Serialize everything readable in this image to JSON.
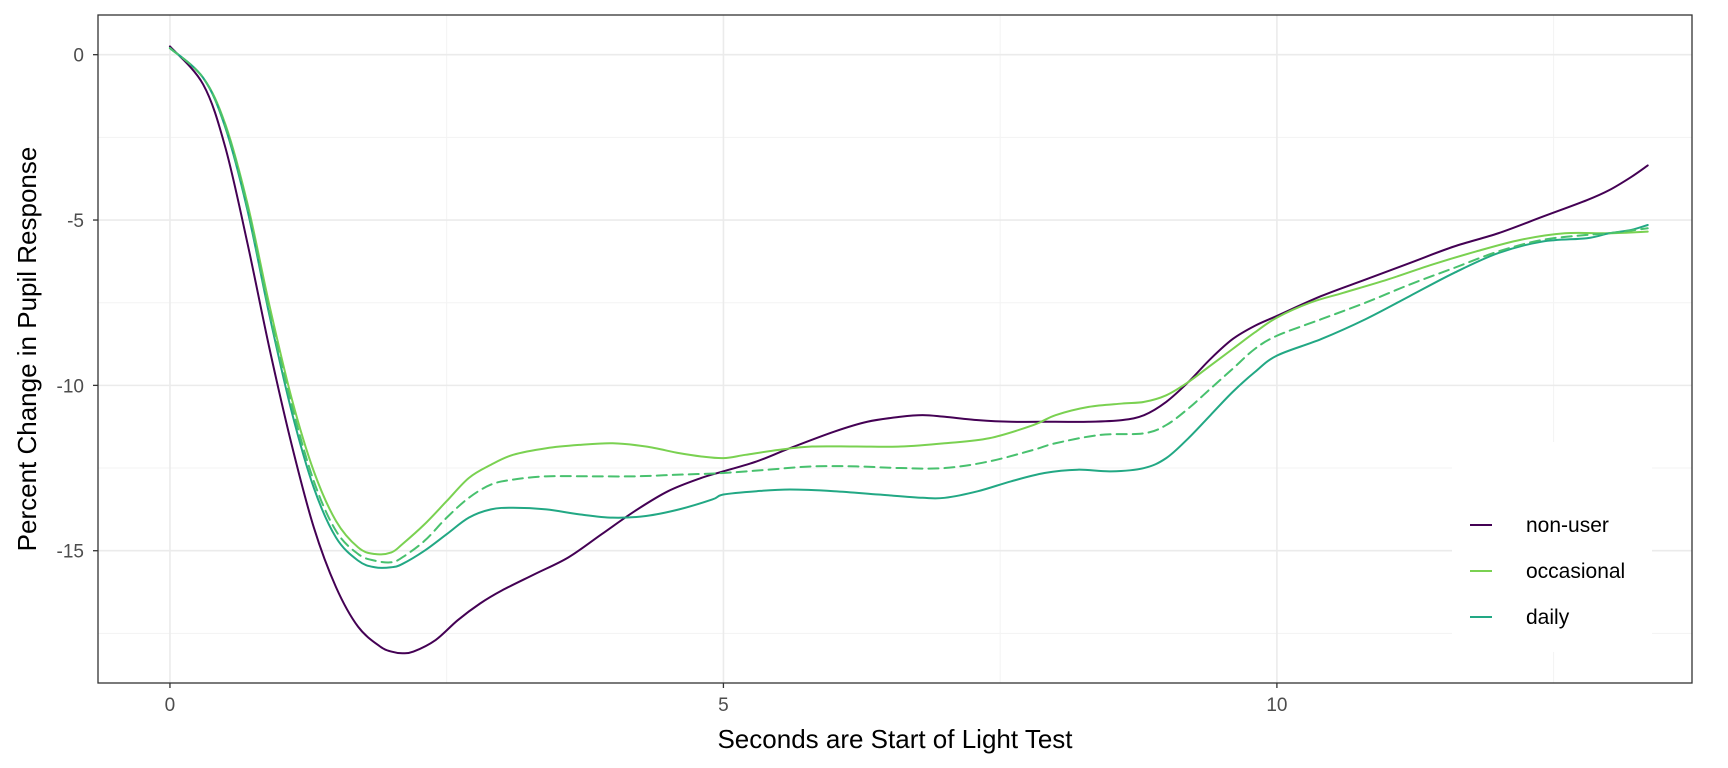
{
  "chart_data": {
    "type": "line",
    "title": "",
    "xlabel": "Seconds are Start of Light Test",
    "ylabel": "Percent Change in Pupil Response",
    "xlim": [
      -0.65,
      13.75
    ],
    "ylim": [
      -19.0,
      1.2
    ],
    "x_ticks": [
      0,
      5,
      10
    ],
    "x_tick_labels": [
      "0",
      "5",
      "10"
    ],
    "y_ticks": [
      0,
      -5,
      -10,
      -15
    ],
    "y_tick_labels": [
      "0",
      "-5",
      "-10",
      "-15"
    ],
    "x_minor_ticks": [
      2.5,
      7.5,
      12.5
    ],
    "y_minor_ticks": [
      -2.5,
      -7.5,
      -12.5,
      -17.5
    ],
    "grid": true,
    "legend_position": "bottom-right",
    "series": [
      {
        "name": "non-user",
        "color": "#440154",
        "dash": "solid",
        "x": [
          0,
          0.3,
          0.5,
          0.7,
          0.9,
          1.1,
          1.3,
          1.5,
          1.7,
          1.9,
          2.0,
          2.1,
          2.2,
          2.4,
          2.6,
          2.8,
          3.0,
          3.3,
          3.6,
          3.9,
          4.2,
          4.5,
          4.8,
          5.0,
          5.3,
          5.6,
          6.0,
          6.3,
          6.6,
          6.8,
          7.0,
          7.3,
          7.6,
          8.0,
          8.3,
          8.6,
          8.8,
          9.0,
          9.2,
          9.4,
          9.6,
          9.8,
          10.0,
          10.4,
          10.8,
          11.2,
          11.6,
          12.0,
          12.4,
          12.8,
          13.0,
          13.2,
          13.35
        ],
        "y": [
          0.25,
          -0.9,
          -2.8,
          -5.7,
          -8.9,
          -11.8,
          -14.3,
          -16.1,
          -17.3,
          -17.9,
          -18.05,
          -18.1,
          -18.05,
          -17.7,
          -17.1,
          -16.6,
          -16.2,
          -15.7,
          -15.2,
          -14.5,
          -13.8,
          -13.2,
          -12.8,
          -12.6,
          -12.3,
          -11.9,
          -11.4,
          -11.1,
          -10.95,
          -10.9,
          -10.95,
          -11.05,
          -11.1,
          -11.1,
          -11.1,
          -11.05,
          -10.9,
          -10.5,
          -9.9,
          -9.2,
          -8.6,
          -8.2,
          -7.9,
          -7.3,
          -6.8,
          -6.3,
          -5.8,
          -5.4,
          -4.9,
          -4.4,
          -4.1,
          -3.7,
          -3.35
        ]
      },
      {
        "name": "occasional",
        "color": "#7AD151",
        "dash": "solid",
        "x": [
          0,
          0.3,
          0.5,
          0.7,
          0.9,
          1.1,
          1.3,
          1.5,
          1.7,
          1.85,
          2.0,
          2.1,
          2.3,
          2.5,
          2.7,
          2.9,
          3.1,
          3.4,
          3.7,
          4.0,
          4.3,
          4.6,
          4.8,
          5.0,
          5.2,
          5.5,
          5.8,
          6.2,
          6.6,
          7.0,
          7.4,
          7.8,
          8.0,
          8.3,
          8.6,
          8.8,
          9.0,
          9.2,
          9.4,
          9.6,
          9.8,
          10.0,
          10.3,
          10.6,
          11.0,
          11.4,
          11.8,
          12.2,
          12.6,
          13.0,
          13.35
        ],
        "y": [
          0.2,
          -0.7,
          -2.1,
          -4.5,
          -7.6,
          -10.4,
          -12.6,
          -14.1,
          -14.9,
          -15.1,
          -15.05,
          -14.8,
          -14.2,
          -13.5,
          -12.8,
          -12.4,
          -12.1,
          -11.9,
          -11.8,
          -11.75,
          -11.85,
          -12.05,
          -12.15,
          -12.2,
          -12.1,
          -11.95,
          -11.85,
          -11.85,
          -11.85,
          -11.75,
          -11.6,
          -11.2,
          -10.9,
          -10.65,
          -10.55,
          -10.5,
          -10.3,
          -9.9,
          -9.4,
          -8.9,
          -8.4,
          -7.95,
          -7.5,
          -7.2,
          -6.8,
          -6.35,
          -5.95,
          -5.6,
          -5.4,
          -5.4,
          -5.35
        ]
      },
      {
        "name": "daily",
        "color": "#22A884",
        "dash": "solid",
        "x": [
          0,
          0.3,
          0.5,
          0.7,
          0.9,
          1.1,
          1.3,
          1.5,
          1.7,
          1.85,
          2.0,
          2.1,
          2.3,
          2.5,
          2.7,
          2.9,
          3.1,
          3.4,
          3.7,
          4.0,
          4.3,
          4.6,
          4.9,
          5.0,
          5.3,
          5.6,
          6.0,
          6.4,
          6.8,
          7.0,
          7.3,
          7.6,
          7.9,
          8.2,
          8.5,
          8.8,
          9.0,
          9.2,
          9.4,
          9.6,
          9.8,
          10.0,
          10.4,
          10.8,
          11.2,
          11.6,
          12.0,
          12.4,
          12.8,
          13.0,
          13.2,
          13.35
        ],
        "y": [
          0.2,
          -0.7,
          -2.2,
          -4.7,
          -7.9,
          -10.8,
          -13.1,
          -14.6,
          -15.3,
          -15.5,
          -15.5,
          -15.4,
          -15.0,
          -14.5,
          -14.0,
          -13.75,
          -13.7,
          -13.75,
          -13.9,
          -14.0,
          -13.95,
          -13.75,
          -13.45,
          -13.3,
          -13.2,
          -13.15,
          -13.2,
          -13.3,
          -13.4,
          -13.4,
          -13.2,
          -12.9,
          -12.65,
          -12.55,
          -12.6,
          -12.5,
          -12.2,
          -11.6,
          -10.9,
          -10.2,
          -9.6,
          -9.1,
          -8.6,
          -8.0,
          -7.3,
          -6.6,
          -6.0,
          -5.65,
          -5.55,
          -5.4,
          -5.3,
          -5.15
        ]
      },
      {
        "name": "",
        "color": "#48C16E",
        "dash": "dashed",
        "x": [
          0,
          0.3,
          0.5,
          0.7,
          0.9,
          1.1,
          1.3,
          1.5,
          1.7,
          1.85,
          2.0,
          2.1,
          2.3,
          2.5,
          2.7,
          2.9,
          3.1,
          3.4,
          3.8,
          4.2,
          4.6,
          5.0,
          5.4,
          5.8,
          6.2,
          6.6,
          7.0,
          7.4,
          7.8,
          8.0,
          8.4,
          8.8,
          9.0,
          9.2,
          9.4,
          9.6,
          9.8,
          10.0,
          10.4,
          10.8,
          11.2,
          11.6,
          12.0,
          12.4,
          12.8,
          13.0,
          13.35
        ],
        "y": [
          0.2,
          -0.7,
          -2.15,
          -4.6,
          -7.8,
          -10.6,
          -12.9,
          -14.4,
          -15.1,
          -15.3,
          -15.35,
          -15.2,
          -14.7,
          -14.0,
          -13.4,
          -13.0,
          -12.85,
          -12.75,
          -12.75,
          -12.75,
          -12.7,
          -12.65,
          -12.55,
          -12.45,
          -12.45,
          -12.5,
          -12.5,
          -12.3,
          -11.95,
          -11.75,
          -11.5,
          -11.45,
          -11.2,
          -10.7,
          -10.1,
          -9.5,
          -8.9,
          -8.5,
          -8.0,
          -7.5,
          -6.95,
          -6.45,
          -5.95,
          -5.6,
          -5.45,
          -5.4,
          -5.25
        ]
      }
    ],
    "legend_items": [
      {
        "label": "non-user",
        "color": "#440154"
      },
      {
        "label": "occasional",
        "color": "#7AD151"
      },
      {
        "label": "daily",
        "color": "#22A884"
      }
    ],
    "colors": {
      "panel_border": "#333333",
      "grid_major": "#ebebeb",
      "grid_minor": "#f3f3f3",
      "tick_text": "#4d4d4d"
    }
  }
}
